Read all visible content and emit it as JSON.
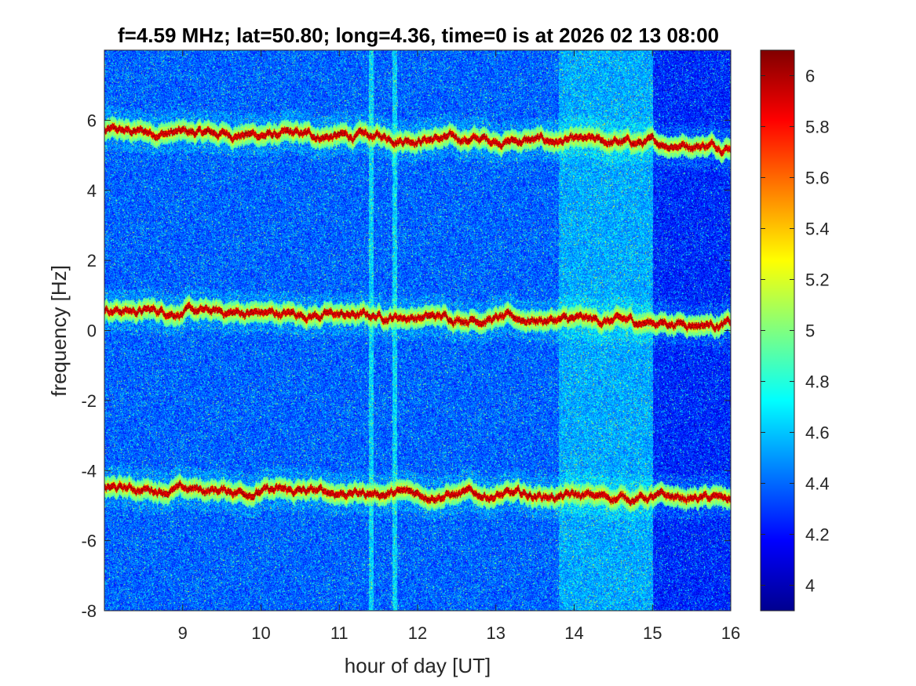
{
  "chart_data": {
    "type": "heatmap",
    "title": "f=4.59 MHz;  lat=50.80; long=4.36, time=0 is at 2026 02 13 08:00",
    "xlabel": "hour of day [UT]",
    "ylabel": "frequency [Hz]",
    "xlim": [
      8,
      16
    ],
    "ylim": [
      -8,
      8
    ],
    "xticks": [
      "9",
      "10",
      "11",
      "12",
      "13",
      "14",
      "15",
      "16"
    ],
    "yticks": [
      "-8",
      "-6",
      "-4",
      "-2",
      "0",
      "2",
      "4",
      "6"
    ],
    "colorbar": {
      "colormap": "jet",
      "clim": [
        3.9,
        6.1
      ],
      "ticks": [
        "4",
        "4.2",
        "4.4",
        "4.6",
        "4.8",
        "5",
        "5.2",
        "5.4",
        "5.6",
        "5.8",
        "6"
      ]
    },
    "traces": [
      {
        "approx_frequency_hz": 5.6,
        "start_hz": 5.7,
        "end_hz": 5.3
      },
      {
        "approx_frequency_hz": 0.4,
        "start_hz": 0.6,
        "end_hz": 0.2
      },
      {
        "approx_frequency_hz": -4.6,
        "start_hz": -4.5,
        "end_hz": -4.8
      }
    ],
    "features": [
      {
        "type": "vertical-line",
        "x_hour": 11.4
      },
      {
        "type": "vertical-line",
        "x_hour": 11.7
      },
      {
        "type": "elevated-noise-band",
        "x_from_hour": 13.8,
        "x_to_hour": 15.0
      },
      {
        "type": "lower-noise-band",
        "x_from_hour": 15.0,
        "x_to_hour": 16.0
      }
    ],
    "grid": false
  }
}
